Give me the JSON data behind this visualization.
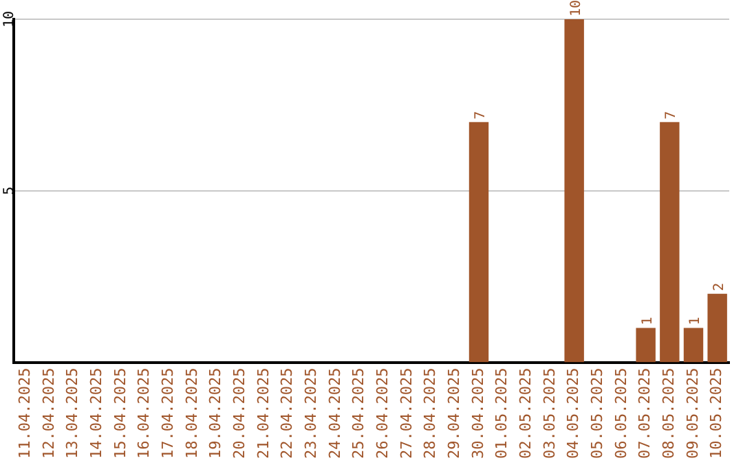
{
  "chart_data": {
    "type": "bar",
    "categories": [
      "11.04.2025",
      "12.04.2025",
      "13.04.2025",
      "14.04.2025",
      "15.04.2025",
      "16.04.2025",
      "17.04.2025",
      "18.04.2025",
      "19.04.2025",
      "20.04.2025",
      "21.04.2025",
      "22.04.2025",
      "23.04.2025",
      "24.04.2025",
      "25.04.2025",
      "26.04.2025",
      "27.04.2025",
      "28.04.2025",
      "29.04.2025",
      "30.04.2025",
      "01.05.2025",
      "02.05.2025",
      "03.05.2025",
      "04.05.2025",
      "05.05.2025",
      "06.05.2025",
      "07.05.2025",
      "08.05.2025",
      "09.05.2025",
      "10.05.2025"
    ],
    "values": [
      0,
      0,
      0,
      0,
      0,
      0,
      0,
      0,
      0,
      0,
      0,
      0,
      0,
      0,
      0,
      0,
      0,
      0,
      0,
      7,
      0,
      0,
      0,
      10,
      0,
      0,
      1,
      7,
      1,
      2
    ],
    "value_labels": [
      null,
      null,
      null,
      null,
      null,
      null,
      null,
      null,
      null,
      null,
      null,
      null,
      null,
      null,
      null,
      null,
      null,
      null,
      null,
      "7",
      null,
      null,
      null,
      "10",
      null,
      null,
      "1",
      "7",
      "1",
      "2"
    ],
    "color": "#a0552a",
    "ylim": [
      0,
      10
    ],
    "yticks": [
      5,
      10
    ],
    "grid": "y",
    "legend": false
  }
}
